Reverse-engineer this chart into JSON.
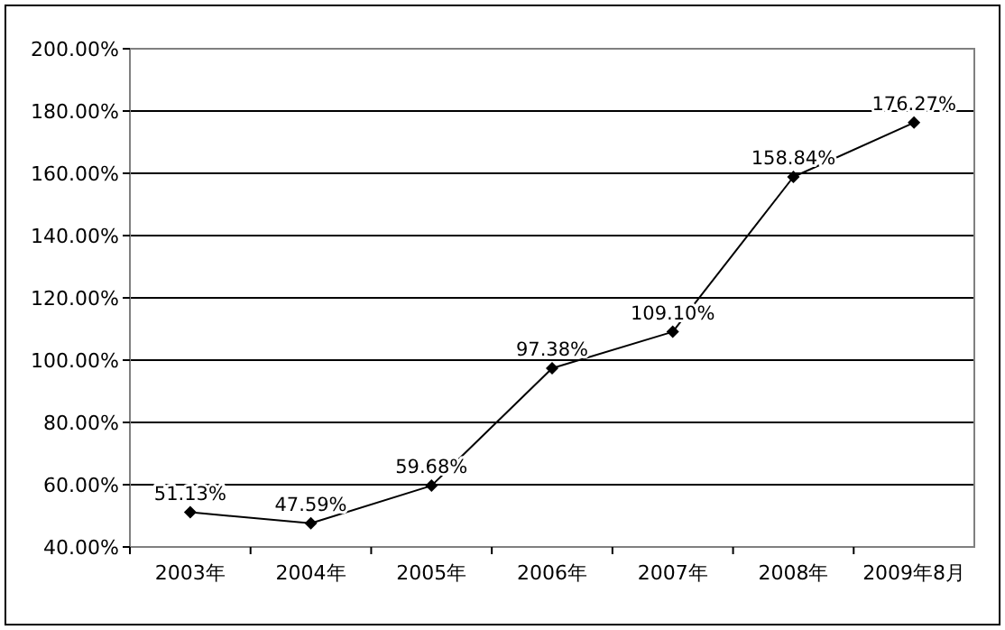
{
  "chart_data": {
    "type": "line",
    "categories": [
      "2003年",
      "2004年",
      "2005年",
      "2006年",
      "2007年",
      "2008年",
      "2009年8月"
    ],
    "series": [
      {
        "color": "#000000",
        "values": [
          51.13,
          47.59,
          59.68,
          97.38,
          109.1,
          158.84,
          176.27
        ],
        "value_labels": [
          "51.13%",
          "47.59%",
          "59.68%",
          "97.38%",
          "109.10%",
          "158.84%",
          "176.27%"
        ]
      }
    ],
    "ylim": [
      40,
      200
    ],
    "yticks": [
      {
        "value": 40,
        "label": "40.00%"
      },
      {
        "value": 60,
        "label": "60.00%"
      },
      {
        "value": 80,
        "label": "80.00%"
      },
      {
        "value": 100,
        "label": "100.00%"
      },
      {
        "value": 120,
        "label": "120.00%"
      },
      {
        "value": 140,
        "label": "140.00%"
      },
      {
        "value": 160,
        "label": "160.00%"
      },
      {
        "value": 180,
        "label": "180.00%"
      },
      {
        "value": 200,
        "label": "200.00%"
      }
    ],
    "grid": "y",
    "marker": "diamond",
    "line_style": "solid"
  }
}
